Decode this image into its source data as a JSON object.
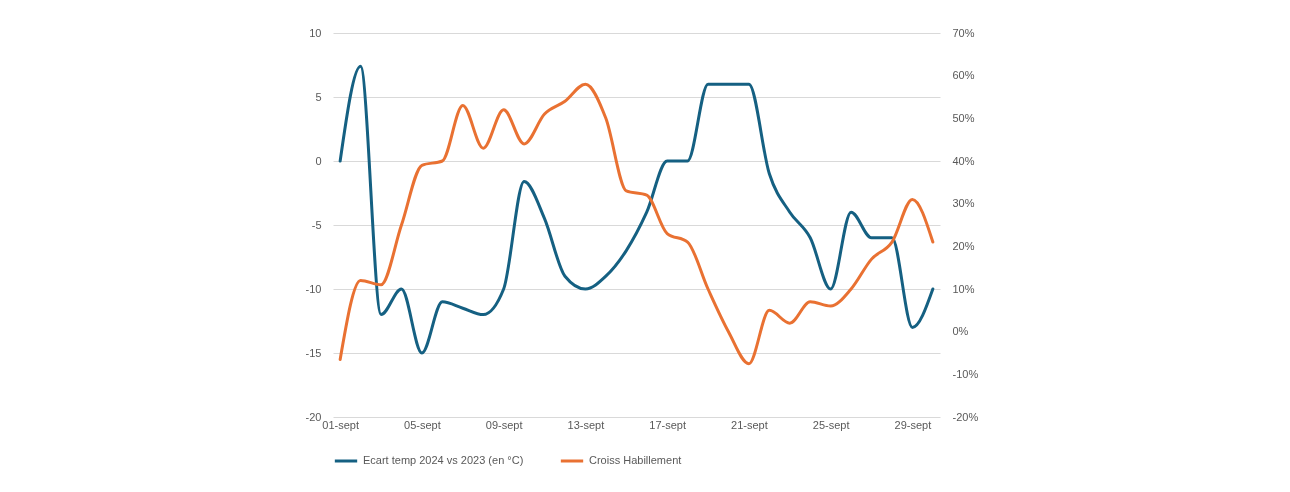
{
  "chart_data": {
    "type": "line",
    "categories": [
      "01-sept",
      null,
      null,
      null,
      "05-sept",
      null,
      null,
      null,
      "09-sept",
      null,
      null,
      null,
      "13-sept",
      null,
      null,
      null,
      "17-sept",
      null,
      null,
      null,
      "21-sept",
      null,
      null,
      null,
      "25-sept",
      null,
      null,
      null,
      "29-sept",
      null
    ],
    "series": [
      {
        "name": "Ecart temp 2024 vs 2023 (en °C)",
        "color": "#156082",
        "values": [
          0,
          7.4,
          -12,
          -10,
          -15,
          -11,
          -11.5,
          -12,
          -10,
          -1.6,
          -4.5,
          -9,
          -10,
          -9,
          -7,
          -4,
          0,
          0,
          6,
          6,
          6,
          -1,
          -4,
          -6,
          -10,
          -4,
          -6,
          -6,
          -13,
          -10
        ]
      },
      {
        "name": "Croiss Habillement",
        "color": "#e97132",
        "axis": "y2",
        "values": [
          -6.5,
          12,
          11,
          25,
          39,
          40,
          53,
          43,
          52,
          44,
          51,
          54,
          58,
          50,
          33,
          32,
          23,
          21,
          10,
          0,
          -7.5,
          5,
          2,
          7,
          6,
          10,
          17,
          21,
          31,
          21
        ]
      }
    ],
    "ylim": [
      -20,
      10
    ],
    "yticks": [
      -20,
      -15,
      -10,
      -5,
      0,
      5,
      10
    ],
    "y2lim": [
      -20,
      70
    ],
    "y2ticks": [
      {
        "value": -20,
        "label": "-20%"
      },
      {
        "value": -10,
        "label": "-10%"
      },
      {
        "value": 0,
        "label": "0%"
      },
      {
        "value": 10,
        "label": "10%"
      },
      {
        "value": 20,
        "label": "20%"
      },
      {
        "value": 30,
        "label": "30%"
      },
      {
        "value": 40,
        "label": "40%"
      },
      {
        "value": 50,
        "label": "50%"
      },
      {
        "value": 60,
        "label": "60%"
      },
      {
        "value": 70,
        "label": "70%"
      }
    ],
    "grid": "y",
    "legend": "bottom",
    "marker": "none",
    "line_style": "solid"
  }
}
